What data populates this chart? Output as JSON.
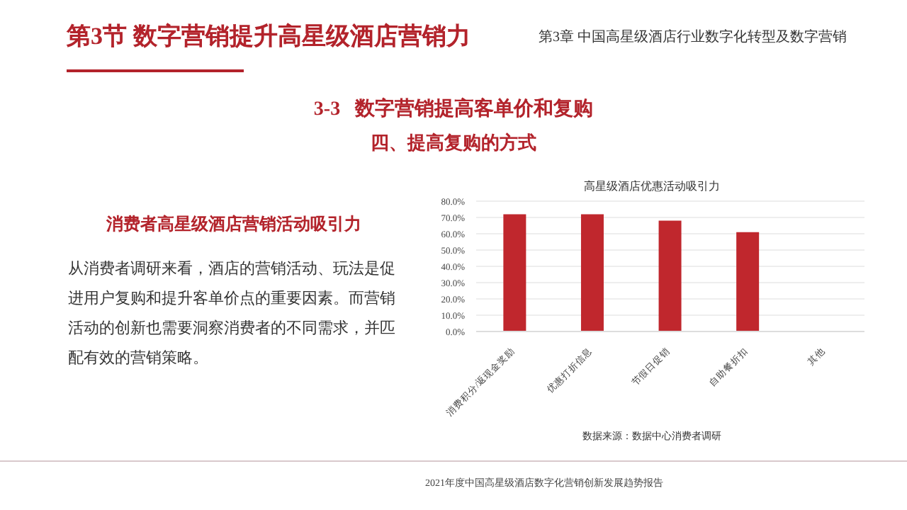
{
  "chart_data": {
    "type": "bar",
    "title": "高星级酒店优惠活动吸引力",
    "categories": [
      "消费积分/返现金奖励",
      "优惠打折信息",
      "节假日促销",
      "自助餐折扣",
      "其他"
    ],
    "values": [
      72,
      72,
      68,
      61,
      0
    ],
    "color": "#c0272d",
    "ylim": [
      0,
      80
    ],
    "yticks": [
      {
        "value": 0,
        "label": "0.0%"
      },
      {
        "value": 10,
        "label": "10.0%"
      },
      {
        "value": 20,
        "label": "20.0%"
      },
      {
        "value": 30,
        "label": "30.0%"
      },
      {
        "value": 40,
        "label": "40.0%"
      },
      {
        "value": 50,
        "label": "50.0%"
      },
      {
        "value": 60,
        "label": "60.0%"
      },
      {
        "value": 70,
        "label": "70.0%"
      },
      {
        "value": 80,
        "label": "80.0%"
      }
    ],
    "grid": "y",
    "annotations": [
      "第3节 数字营销提升高星级酒店营销力",
      "第3章 中国高星级酒店行业数字化转型及数字营销",
      "3-3   数字营销提高客单价和复购",
      "四、提高复购的方式",
      "消费者高星级酒店营销活动吸引力",
      "从消费者调研来看，酒店的营销活动、玩法是促进用户复购和提升客单价点的重要因素。而营销活动的创新也需要洞察消费者的不同需求，并匹配有效的营销策略。",
      "数据来源：数据中心消费者调研",
      "2021年度中国高星级酒店数字化营销创新发展趋势报告"
    ]
  }
}
